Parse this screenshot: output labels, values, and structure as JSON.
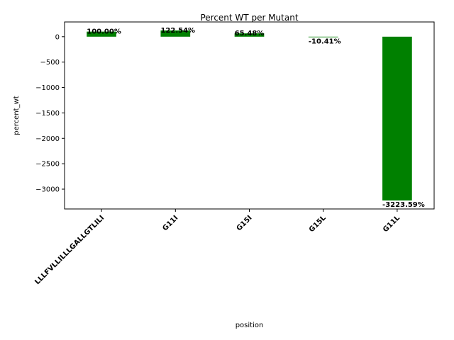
{
  "chart_data": {
    "type": "bar",
    "title": "Percent WT per Mutant",
    "xlabel": "position",
    "ylabel": "percent_wt",
    "categories": [
      "LLLFVLLILLLGALLGTLILI",
      "G11I",
      "G15I",
      "G15L",
      "G11L"
    ],
    "values": [
      100.0,
      122.54,
      65.48,
      -10.41,
      -3223.59
    ],
    "data_labels": [
      "100.00%",
      "122.54%",
      "65.48%",
      "-10.41%",
      "-3223.59%"
    ],
    "yticks": [
      0,
      -500,
      -1000,
      -1500,
      -2000,
      -2500,
      -3000
    ],
    "ytick_labels": [
      "0",
      "−500",
      "−1000",
      "−1500",
      "−2000",
      "−2500",
      "−3000"
    ],
    "ylim": [
      -3390,
      290
    ],
    "bar_color": "#008000",
    "grid": false,
    "legend": "none"
  }
}
